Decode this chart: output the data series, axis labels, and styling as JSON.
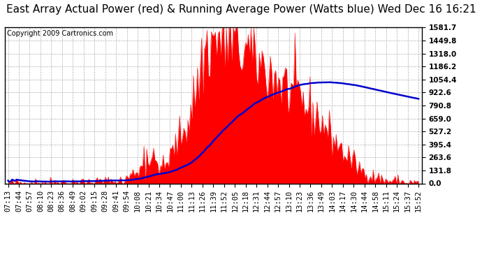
{
  "title": "East Array Actual Power (red) & Running Average Power (Watts blue) Wed Dec 16 16:21",
  "copyright": "Copyright 2009 Cartronics.com",
  "y_max": 1581.7,
  "y_min": 0.0,
  "y_ticks": [
    0.0,
    131.8,
    263.6,
    395.4,
    527.2,
    659.0,
    790.8,
    922.6,
    1054.4,
    1186.2,
    1318.0,
    1449.8,
    1581.7
  ],
  "x_labels": [
    "07:13",
    "07:44",
    "07:57",
    "08:10",
    "08:23",
    "08:36",
    "08:49",
    "09:02",
    "09:15",
    "09:28",
    "09:41",
    "09:54",
    "10:08",
    "10:21",
    "10:34",
    "10:47",
    "11:00",
    "11:13",
    "11:26",
    "11:39",
    "11:52",
    "12:05",
    "12:18",
    "12:31",
    "12:44",
    "12:57",
    "13:10",
    "13:23",
    "13:36",
    "13:49",
    "14:03",
    "14:17",
    "14:30",
    "14:44",
    "14:58",
    "15:11",
    "15:24",
    "15:37",
    "15:52"
  ],
  "bg_color": "#ffffff",
  "plot_bg_color": "#ffffff",
  "red_color": "#ff0000",
  "blue_color": "#0000cc",
  "grid_color": "#b0b0b0",
  "title_fontsize": 11,
  "tick_fontsize": 7.5,
  "copyright_fontsize": 7
}
